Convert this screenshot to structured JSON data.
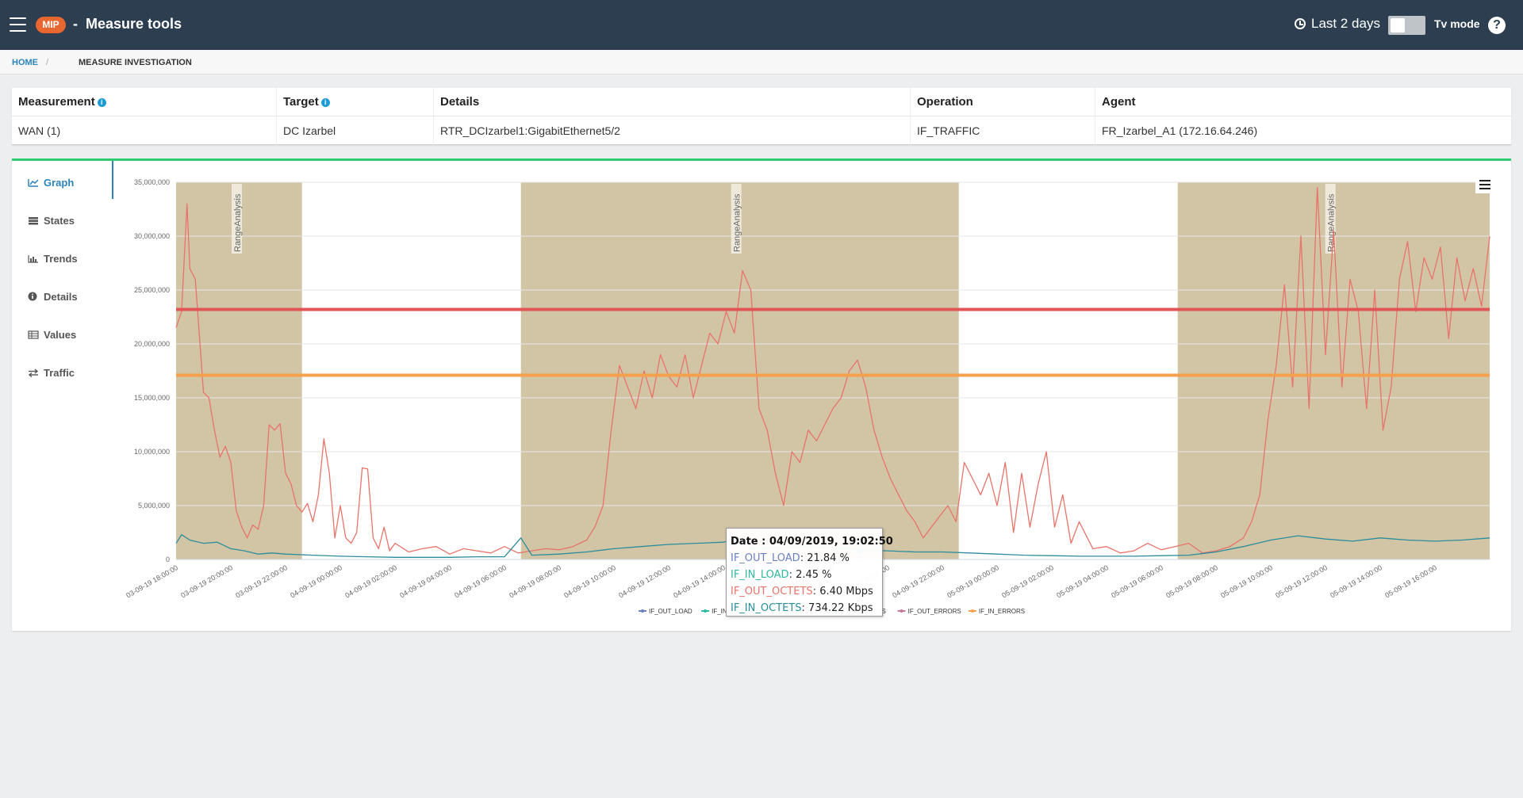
{
  "header": {
    "logo_text": "MIP",
    "separator": "-",
    "title": "Measure tools",
    "time_range": "Last 2 days",
    "tv_mode_label": "Tv mode",
    "tv_mode_on": false,
    "help_label": "?"
  },
  "breadcrumb": {
    "home": "HOME",
    "separator": "/",
    "current": "MEASURE INVESTIGATION"
  },
  "info_table": {
    "headers": [
      "Measurement",
      "Target",
      "Details",
      "Operation",
      "Agent"
    ],
    "row": [
      "WAN (1)",
      "DC Izarbel",
      "RTR_DCIzarbel1:GigabitEthernet5/2",
      "IF_TRAFFIC",
      "FR_Izarbel_A1 (172.16.64.246)"
    ]
  },
  "side_nav": {
    "items": [
      {
        "label": "Graph",
        "icon": "line-chart-icon",
        "active": true
      },
      {
        "label": "States",
        "icon": "list-icon",
        "active": false
      },
      {
        "label": "Trends",
        "icon": "bar-chart-icon",
        "active": false
      },
      {
        "label": "Details",
        "icon": "info-icon",
        "active": false
      },
      {
        "label": "Values",
        "icon": "table-icon",
        "active": false
      },
      {
        "label": "Traffic",
        "icon": "swap-icon",
        "active": false
      }
    ]
  },
  "tooltip": {
    "date": "Date : 04/09/2019, 19:02:50",
    "rows": [
      {
        "key": "IF_OUT_LOAD",
        "value": "21.84 %",
        "color": "#6a7fbf"
      },
      {
        "key": "IF_IN_LOAD",
        "value": "2.45 %",
        "color": "#2eb8a0"
      },
      {
        "key": "IF_OUT_OCTETS",
        "value": "6.40 Mbps",
        "color": "#e8736a"
      },
      {
        "key": "IF_IN_OCTETS",
        "value": "734.22 Kbps",
        "color": "#2a8d9a"
      }
    ]
  },
  "chart_data": {
    "type": "line",
    "ylim": [
      0,
      35000000
    ],
    "y_ticks": [
      "0",
      "5,000,000",
      "10,000,000",
      "15,000,000",
      "20,000,000",
      "25,000,000",
      "30,000,000",
      "35,000,000"
    ],
    "x_ticks": [
      "03-09-19 18:00:00",
      "03-09-19 20:00:00",
      "03-09-19 22:00:00",
      "04-09-19 00:00:00",
      "04-09-19 02:00:00",
      "04-09-19 04:00:00",
      "04-09-19 06:00:00",
      "04-09-19 08:00:00",
      "04-09-19 10:00:00",
      "04-09-19 12:00:00",
      "04-09-19 14:00:00",
      "04-09-19 16:00:00",
      "04-09-19 18:00:00",
      "04-09-19 20:00:00",
      "04-09-19 22:00:00",
      "05-09-19 00:00:00",
      "05-09-19 02:00:00",
      "05-09-19 04:00:00",
      "05-09-19 06:00:00",
      "05-09-19 08:00:00",
      "05-09-19 10:00:00",
      "05-09-19 12:00:00",
      "05-09-19 14:00:00",
      "05-09-19 16:00:00"
    ],
    "x_hours_range": [
      0,
      48
    ],
    "bands": [
      {
        "from_hour": 0,
        "to_hour": 4.6,
        "label": "RangeAnalysis"
      },
      {
        "from_hour": 12.6,
        "to_hour": 28.6,
        "label": "RangeAnalysis"
      },
      {
        "from_hour": 36.6,
        "to_hour": 48,
        "label": "RangeAnalysis"
      }
    ],
    "thresholds": [
      {
        "value": 23200000,
        "color": "#e05656"
      },
      {
        "value": 17100000,
        "color": "#f5a04a"
      }
    ],
    "legend": [
      "IF_OUT_LOAD",
      "IF_IN_LOAD",
      "IF_OUT_OCTETS",
      "IF_IN_OCTETS",
      "IF_OUT_ERRORS",
      "IF_IN_ERRORS"
    ],
    "legend_colors": [
      "#6a7fbf",
      "#2eb8a0",
      "#e8736a",
      "#2a8d9a",
      "#c47a9a",
      "#f5a04a"
    ],
    "marker_hour": 25.0,
    "series": [
      {
        "name": "IF_OUT_OCTETS",
        "color": "#e8736a",
        "x": [
          0,
          0.2,
          0.4,
          0.5,
          0.7,
          0.9,
          1.0,
          1.2,
          1.4,
          1.6,
          1.8,
          2.0,
          2.2,
          2.4,
          2.6,
          2.8,
          3.0,
          3.2,
          3.4,
          3.6,
          3.8,
          4.0,
          4.2,
          4.4,
          4.6,
          4.8,
          5.0,
          5.2,
          5.4,
          5.6,
          5.8,
          6.0,
          6.2,
          6.4,
          6.6,
          6.8,
          7.0,
          7.2,
          7.4,
          7.6,
          7.8,
          8.0,
          8.5,
          9.0,
          9.5,
          10.0,
          10.5,
          11.0,
          11.5,
          12.0,
          12.5,
          13.0,
          13.5,
          14.0,
          14.5,
          15.0,
          15.3,
          15.6,
          15.9,
          16.2,
          16.5,
          16.8,
          17.1,
          17.4,
          17.7,
          18.0,
          18.3,
          18.6,
          18.9,
          19.2,
          19.5,
          19.8,
          20.1,
          20.4,
          20.7,
          21.0,
          21.3,
          21.6,
          21.9,
          22.2,
          22.5,
          22.8,
          23.1,
          23.4,
          23.7,
          24.0,
          24.3,
          24.6,
          24.9,
          25.2,
          25.5,
          25.8,
          26.1,
          26.4,
          26.7,
          27.0,
          27.3,
          27.6,
          27.9,
          28.2,
          28.5,
          28.8,
          29.1,
          29.4,
          29.7,
          30.0,
          30.3,
          30.6,
          30.9,
          31.2,
          31.5,
          31.8,
          32.1,
          32.4,
          32.7,
          33.0,
          33.5,
          34.0,
          34.5,
          35.0,
          35.5,
          36.0,
          36.5,
          37.0,
          37.5,
          38.0,
          38.5,
          39.0,
          39.3,
          39.6,
          39.9,
          40.2,
          40.5,
          40.8,
          41.1,
          41.4,
          41.7,
          42.0,
          42.3,
          42.6,
          42.9,
          43.2,
          43.5,
          43.8,
          44.1,
          44.4,
          44.7,
          45.0,
          45.3,
          45.6,
          45.9,
          46.2,
          46.5,
          46.8,
          47.1,
          47.4,
          47.7,
          48.0
        ],
        "y": [
          21500000,
          23000000,
          33000000,
          27000000,
          26000000,
          19000000,
          15500000,
          15000000,
          12000000,
          9500000,
          10500000,
          9000000,
          4500000,
          3000000,
          2000000,
          3200000,
          2800000,
          5000000,
          12500000,
          12000000,
          12600000,
          8000000,
          7000000,
          5000000,
          4400000,
          5200000,
          3500000,
          6000000,
          11200000,
          8000000,
          2000000,
          5000000,
          2000000,
          1500000,
          2500000,
          8500000,
          8400000,
          2000000,
          1000000,
          3000000,
          800000,
          1500000,
          700000,
          1000000,
          1200000,
          500000,
          1000000,
          800000,
          600000,
          1200000,
          600000,
          800000,
          1000000,
          900000,
          1200000,
          1800000,
          3000000,
          5000000,
          12000000,
          18000000,
          16000000,
          14000000,
          17500000,
          15000000,
          19000000,
          17000000,
          16000000,
          19000000,
          15000000,
          18000000,
          21000000,
          20000000,
          23000000,
          21000000,
          26800000,
          25000000,
          14000000,
          12000000,
          8000000,
          5000000,
          10000000,
          9000000,
          12000000,
          11000000,
          12500000,
          14000000,
          15000000,
          17500000,
          18500000,
          16000000,
          12000000,
          9500000,
          7500000,
          6000000,
          4500000,
          3500000,
          2000000,
          3000000,
          4000000,
          5000000,
          3500000,
          9000000,
          7500000,
          6000000,
          8000000,
          5000000,
          9000000,
          2500000,
          8000000,
          3000000,
          7000000,
          10000000,
          3000000,
          6000000,
          1500000,
          3500000,
          1000000,
          1200000,
          600000,
          800000,
          1500000,
          900000,
          1200000,
          1500000,
          600000,
          800000,
          1200000,
          2000000,
          3500000,
          6000000,
          13000000,
          18000000,
          25500000,
          16000000,
          30000000,
          14000000,
          34500000,
          19000000,
          30500000,
          16000000,
          26000000,
          23000000,
          14000000,
          25000000,
          12000000,
          16000000,
          26000000,
          29500000,
          23000000,
          28000000,
          26000000,
          29000000,
          20500000,
          28000000,
          24000000,
          27000000,
          23500000,
          30000000
        ]
      },
      {
        "name": "IF_IN_OCTETS",
        "color": "#2a8d9a",
        "x": [
          0,
          0.2,
          0.5,
          1.0,
          1.5,
          2.0,
          2.5,
          3.0,
          3.5,
          4.0,
          5.0,
          6.0,
          7.0,
          8.0,
          9.0,
          10.0,
          11.0,
          12.0,
          12.6,
          13.0,
          14.0,
          15.0,
          16.0,
          17.0,
          18.0,
          19.0,
          20.0,
          20.5,
          21.0,
          22.0,
          23.0,
          24.0,
          25.0,
          26.0,
          27.0,
          28.0,
          29.0,
          30.0,
          31.0,
          32.0,
          33.0,
          34.0,
          35.0,
          36.0,
          37.0,
          38.0,
          39.0,
          40.0,
          41.0,
          42.0,
          43.0,
          44.0,
          45.0,
          46.0,
          47.0,
          48.0
        ],
        "y": [
          1500000,
          2300000,
          1800000,
          1500000,
          1600000,
          1000000,
          800000,
          500000,
          600000,
          500000,
          400000,
          300000,
          250000,
          200000,
          200000,
          200000,
          250000,
          250000,
          2000000,
          400000,
          500000,
          700000,
          1000000,
          1200000,
          1400000,
          1500000,
          1600000,
          2000000,
          1000000,
          1100000,
          1200000,
          1100000,
          900000,
          800000,
          700000,
          700000,
          600000,
          500000,
          400000,
          350000,
          300000,
          300000,
          300000,
          350000,
          400000,
          700000,
          1200000,
          1800000,
          2200000,
          1900000,
          1700000,
          2000000,
          1800000,
          1700000,
          1800000,
          2000000
        ]
      }
    ]
  }
}
